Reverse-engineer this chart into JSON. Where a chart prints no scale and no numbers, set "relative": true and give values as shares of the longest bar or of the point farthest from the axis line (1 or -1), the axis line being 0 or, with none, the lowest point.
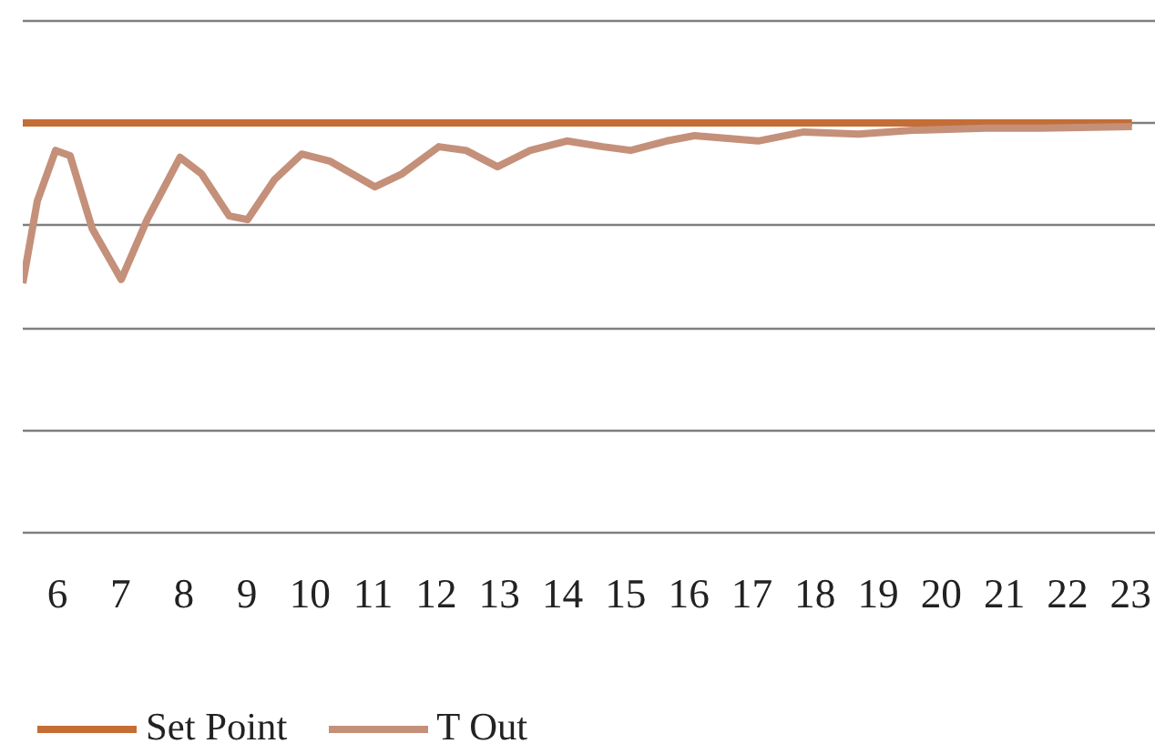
{
  "chart_data": {
    "type": "line",
    "relative": true,
    "xlim": [
      5.45,
      23.4
    ],
    "xticks": [
      6,
      7,
      8,
      9,
      10,
      11,
      12,
      13,
      14,
      15,
      16,
      17,
      18,
      19,
      20,
      21,
      22,
      23
    ],
    "grid": "y",
    "legend": "bottom",
    "line_style": "solid",
    "marker": "none",
    "series": [
      {
        "name": "Set Point",
        "color": "#c46d35",
        "x": [
          5.45,
          23.02
        ],
        "values": [
          1,
          1
        ]
      },
      {
        "name": "T Out",
        "color": "#c4907a",
        "x": [
          5.45,
          5.68,
          5.97,
          6.2,
          6.55,
          7.01,
          7.42,
          7.94,
          8.28,
          8.72,
          9.01,
          9.44,
          9.87,
          10.31,
          11.03,
          11.46,
          12.04,
          12.47,
          12.97,
          13.49,
          14.07,
          14.64,
          15.08,
          15.65,
          16.09,
          17.1,
          17.82,
          18.69,
          19.55,
          20.71,
          21.58,
          23.02
        ],
        "values": [
          0.609,
          0.809,
          0.933,
          0.92,
          0.742,
          0.618,
          0.764,
          0.916,
          0.876,
          0.773,
          0.764,
          0.862,
          0.924,
          0.907,
          0.844,
          0.876,
          0.942,
          0.933,
          0.893,
          0.933,
          0.956,
          0.942,
          0.933,
          0.956,
          0.969,
          0.956,
          0.978,
          0.973,
          0.982,
          0.987,
          0.987,
          0.991
        ]
      }
    ]
  }
}
